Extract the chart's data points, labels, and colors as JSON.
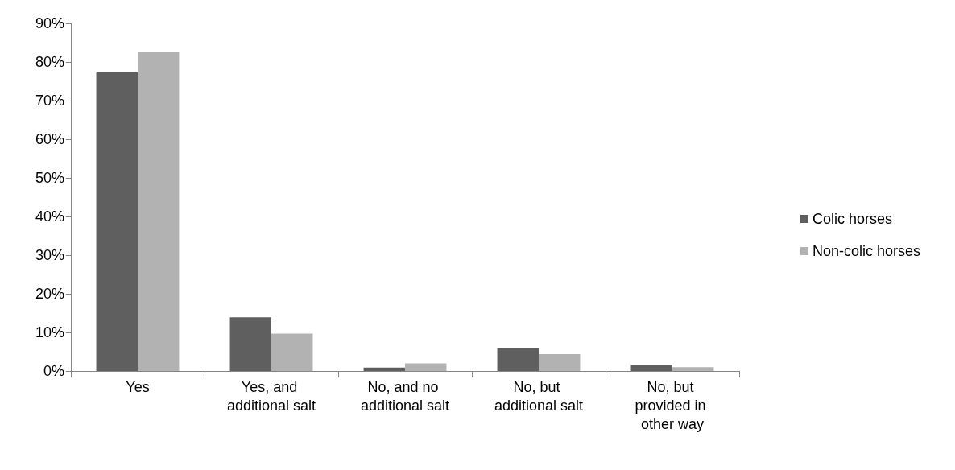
{
  "chart_data": {
    "type": "bar",
    "categories": [
      "Yes",
      "Yes, and additional salt",
      "No, and no additional salt",
      "No, but additional salt",
      "No, but provided in other way"
    ],
    "series": [
      {
        "name": "Colic horses",
        "color": "#5f5f5f",
        "values": [
          77.3,
          13.9,
          0.9,
          6.0,
          1.6
        ]
      },
      {
        "name": "Non-colic horses",
        "color": "#b2b2b2",
        "values": [
          82.7,
          9.7,
          2.0,
          4.4,
          1.0
        ]
      }
    ],
    "ylim": [
      0,
      90
    ],
    "yticks": [
      {
        "value": 0,
        "label": "0%"
      },
      {
        "value": 10,
        "label": "10%"
      },
      {
        "value": 20,
        "label": "20%"
      },
      {
        "value": 30,
        "label": "30%"
      },
      {
        "value": 40,
        "label": "40%"
      },
      {
        "value": 50,
        "label": "50%"
      },
      {
        "value": 60,
        "label": "60%"
      },
      {
        "value": 70,
        "label": "70%"
      },
      {
        "value": 80,
        "label": "80%"
      },
      {
        "value": 90,
        "label": "90%"
      }
    ],
    "grid": false,
    "legend": "right"
  }
}
